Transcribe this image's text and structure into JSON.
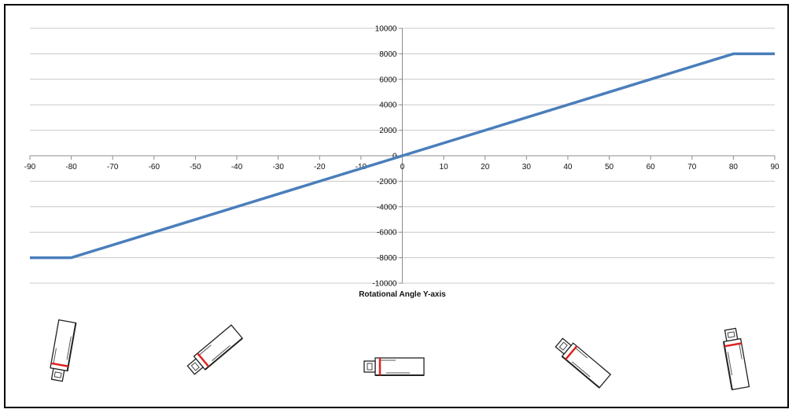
{
  "chart_data": {
    "type": "line",
    "xlabel": "Rotational Angle Y-axis",
    "ylabel": "",
    "xlim": [
      -90,
      90
    ],
    "ylim": [
      -10000,
      10000
    ],
    "x_ticks": [
      -90,
      -80,
      -70,
      -60,
      -50,
      -40,
      -30,
      -20,
      -10,
      0,
      10,
      20,
      30,
      40,
      50,
      60,
      70,
      80,
      90
    ],
    "y_ticks": [
      -10000,
      -8000,
      -6000,
      -4000,
      -2000,
      0,
      2000,
      4000,
      6000,
      8000,
      10000
    ],
    "grid": "horizontal",
    "series": [
      {
        "x": [
          -90,
          -80,
          80,
          90
        ],
        "y": [
          -8000,
          -8000,
          8000,
          8000
        ],
        "color": "#4a7ebb"
      }
    ]
  },
  "sensor_icons": [
    {
      "name": "sensor-icon-minus-80",
      "angle": -80
    },
    {
      "name": "sensor-icon-minus-40",
      "angle": -40
    },
    {
      "name": "sensor-icon-0",
      "angle": 0
    },
    {
      "name": "sensor-icon-40",
      "angle": 40
    },
    {
      "name": "sensor-icon-80",
      "angle": 80
    }
  ],
  "colors": {
    "line": "#4a7ebb",
    "grid": "#c8c8c8",
    "axis": "#8c8c8c",
    "marker": "#e02020"
  }
}
